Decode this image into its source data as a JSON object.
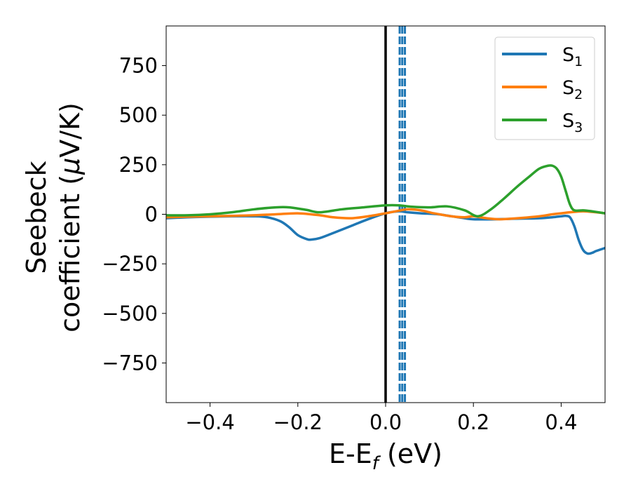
{
  "chart_data": {
    "type": "line",
    "title": "",
    "xlabel": "E-E",
    "xlabel_sub": "f",
    "xlabel_unit": " (eV)",
    "ylabel_line1": "Seebeck",
    "ylabel_line2_pre": "coefficient  (",
    "ylabel_mu": "μ",
    "ylabel_line2_post": "V/K)",
    "xlim": [
      -0.5,
      0.5
    ],
    "ylim": [
      -950,
      950
    ],
    "xticks": [
      -0.4,
      -0.2,
      0.0,
      0.2,
      0.4
    ],
    "xtick_labels": [
      "−0.4",
      "−0.2",
      "0.0",
      "0.2",
      "0.4"
    ],
    "yticks": [
      750,
      500,
      250,
      0,
      -250,
      -500,
      -750
    ],
    "ytick_labels": [
      "750",
      "500",
      "250",
      "0",
      "−250",
      "−500",
      "−750"
    ],
    "grid": false,
    "legend_position": "top-right",
    "vline_solid": {
      "x": 0.0,
      "color": "#000000"
    },
    "vlines_dashed": {
      "x": [
        0.032,
        0.038,
        0.044
      ],
      "color": "#1f77b4"
    },
    "series": [
      {
        "name": "S",
        "sub": "1",
        "color": "#1f77b4",
        "x": [
          -0.5,
          -0.45,
          -0.4,
          -0.35,
          -0.3,
          -0.27,
          -0.24,
          -0.22,
          -0.2,
          -0.18,
          -0.17,
          -0.15,
          -0.12,
          -0.08,
          -0.04,
          0.0,
          0.03,
          0.05,
          0.08,
          0.12,
          0.15,
          0.18,
          0.2,
          0.25,
          0.3,
          0.35,
          0.38,
          0.4,
          0.41,
          0.42,
          0.43,
          0.44,
          0.45,
          0.46,
          0.47,
          0.48,
          0.5
        ],
        "y": [
          -20,
          -15,
          -12,
          -10,
          -10,
          -15,
          -35,
          -65,
          -105,
          -125,
          -128,
          -120,
          -95,
          -60,
          -25,
          5,
          15,
          10,
          5,
          0,
          -10,
          -20,
          -25,
          -25,
          -22,
          -20,
          -15,
          -10,
          -8,
          -15,
          -60,
          -130,
          -180,
          -198,
          -195,
          -185,
          -170
        ]
      },
      {
        "name": "S",
        "sub": "2",
        "color": "#ff7f0e",
        "x": [
          -0.5,
          -0.45,
          -0.4,
          -0.35,
          -0.3,
          -0.25,
          -0.2,
          -0.15,
          -0.12,
          -0.08,
          -0.04,
          0.0,
          0.03,
          0.05,
          0.08,
          0.11,
          0.15,
          0.18,
          0.2,
          0.23,
          0.26,
          0.3,
          0.35,
          0.38,
          0.4,
          0.42,
          0.45,
          0.48,
          0.5
        ],
        "y": [
          -15,
          -12,
          -10,
          -8,
          -5,
          0,
          5,
          -5,
          -15,
          -20,
          -10,
          5,
          18,
          25,
          20,
          5,
          -10,
          -15,
          -10,
          -20,
          -25,
          -20,
          -10,
          0,
          5,
          10,
          15,
          10,
          5
        ]
      },
      {
        "name": "S",
        "sub": "3",
        "color": "#2ca02c",
        "x": [
          -0.5,
          -0.45,
          -0.4,
          -0.35,
          -0.3,
          -0.25,
          -0.22,
          -0.18,
          -0.15,
          -0.1,
          -0.05,
          0.0,
          0.03,
          0.06,
          0.1,
          0.14,
          0.18,
          0.21,
          0.24,
          0.27,
          0.3,
          0.33,
          0.35,
          0.37,
          0.38,
          0.39,
          0.4,
          0.41,
          0.42,
          0.43,
          0.45,
          0.47,
          0.5
        ],
        "y": [
          -5,
          -5,
          0,
          10,
          25,
          35,
          35,
          22,
          10,
          25,
          35,
          45,
          45,
          38,
          35,
          40,
          20,
          -10,
          25,
          80,
          140,
          195,
          230,
          245,
          245,
          230,
          190,
          120,
          50,
          20,
          20,
          15,
          5
        ]
      }
    ]
  }
}
